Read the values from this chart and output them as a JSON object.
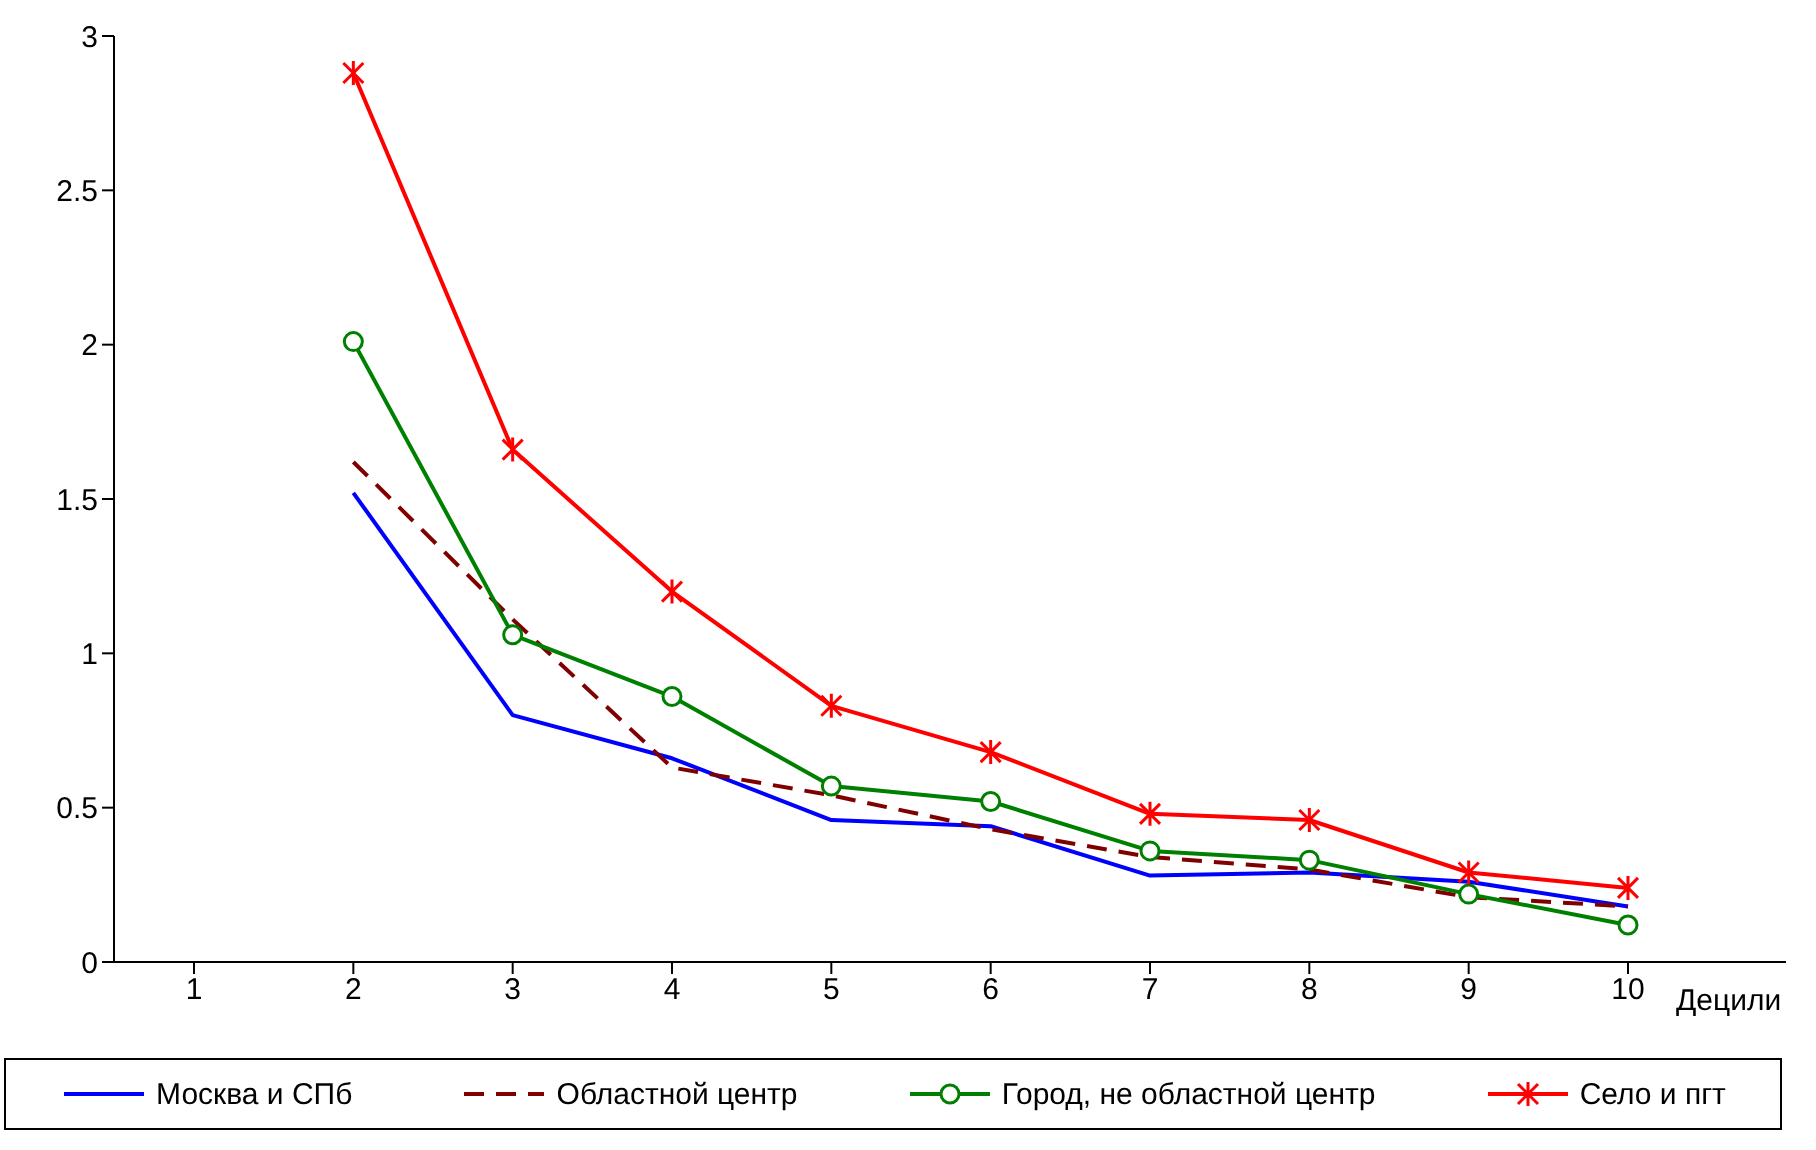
{
  "chart_data": {
    "type": "line",
    "xlabel": "Децили",
    "categories": [
      "1",
      "2",
      "3",
      "4",
      "5",
      "6",
      "7",
      "8",
      "9",
      "10"
    ],
    "ylim": [
      0,
      3
    ],
    "yticks": [
      0,
      0.5,
      1,
      1.5,
      2,
      2.5,
      3
    ],
    "grid": false,
    "legend": "bottom",
    "series": [
      {
        "name": "Москва и СПб",
        "color": "#0000ff",
        "marker": "none",
        "line_style": "solid",
        "values": [
          null,
          1.52,
          0.8,
          0.66,
          0.46,
          0.44,
          0.28,
          0.29,
          0.26,
          0.18
        ]
      },
      {
        "name": "Областной центр",
        "color": "#800000",
        "marker": "none",
        "line_style": "dashed",
        "values": [
          null,
          1.62,
          1.11,
          0.63,
          0.54,
          0.43,
          0.34,
          0.3,
          0.21,
          0.18
        ]
      },
      {
        "name": "Город, не областной центр",
        "color": "#008000",
        "marker": "circle",
        "line_style": "solid",
        "values": [
          null,
          2.01,
          1.06,
          0.86,
          0.57,
          0.52,
          0.36,
          0.33,
          0.22,
          0.12
        ]
      },
      {
        "name": "Село и пгт",
        "color": "#ff0000",
        "marker": "cross",
        "line_style": "solid",
        "values": [
          null,
          2.88,
          1.66,
          1.2,
          0.83,
          0.68,
          0.48,
          0.46,
          0.29,
          0.24
        ]
      }
    ]
  }
}
